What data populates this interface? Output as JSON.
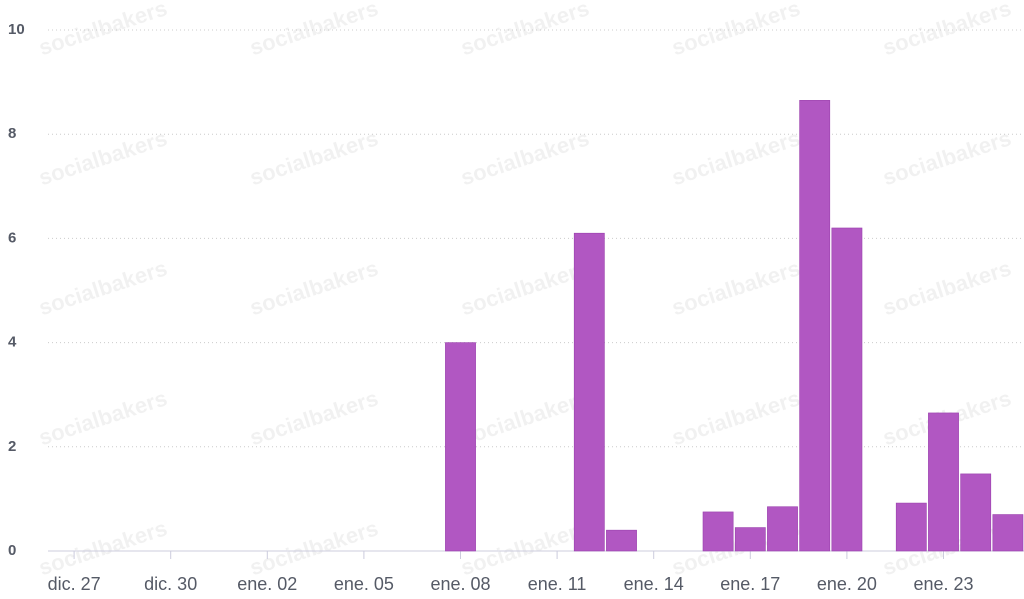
{
  "chart_data": {
    "type": "bar",
    "watermark": "socialbakers",
    "categories": [
      "dic. 27",
      null,
      null,
      "dic. 30",
      null,
      null,
      "ene. 02",
      null,
      null,
      "ene. 05",
      null,
      null,
      "ene. 08",
      null,
      null,
      "ene. 11",
      null,
      null,
      "ene. 14",
      null,
      null,
      "ene. 17",
      null,
      null,
      "ene. 20",
      null,
      null,
      "ene. 23",
      null,
      null
    ],
    "values": [
      0,
      0,
      0,
      0,
      0,
      0,
      0,
      0,
      0,
      0,
      0,
      0,
      4,
      0,
      0,
      0,
      6.1,
      0.4,
      0,
      0,
      0.75,
      0.45,
      0.85,
      8.65,
      6.2,
      0,
      0.92,
      2.65,
      1.48,
      0.7
    ],
    "color": "#b157c2",
    "ylim": [
      0,
      10
    ],
    "yticks": [
      0,
      2,
      4,
      6,
      8,
      10
    ],
    "grid": true
  }
}
